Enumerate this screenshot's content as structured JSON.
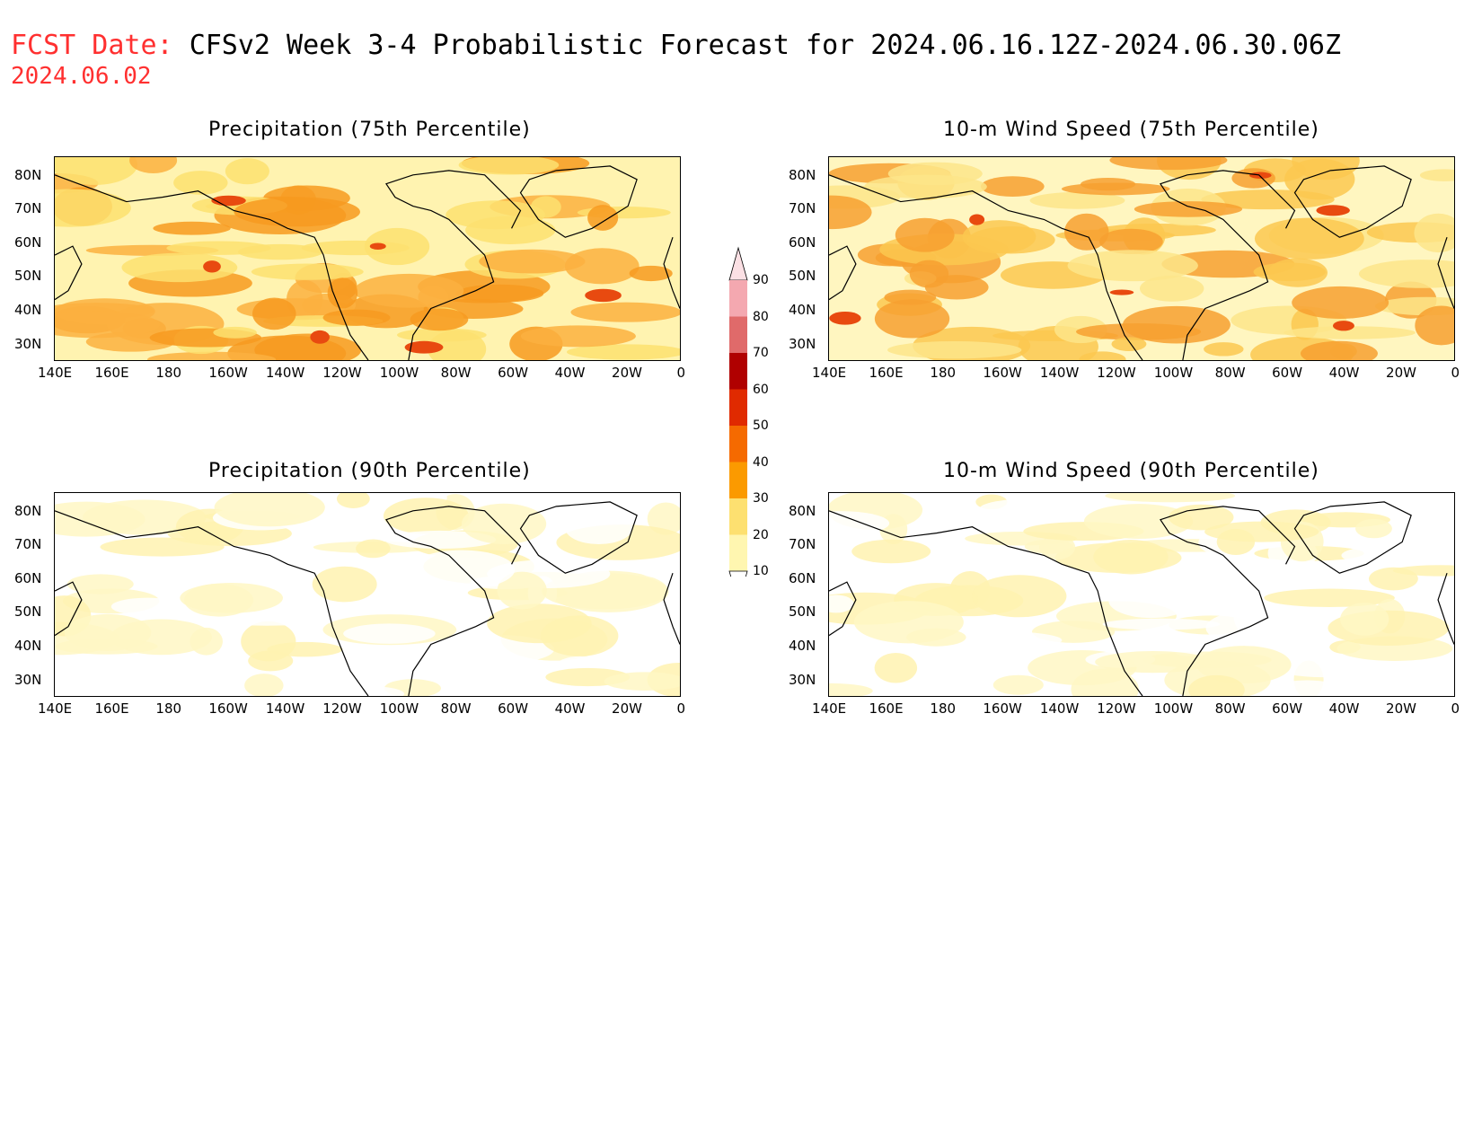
{
  "header": {
    "fcst_label": "FCST Date:",
    "title": "CFSv2 Week 3-4 Probabilistic Forecast for 2024.06.16.12Z-2024.06.30.06Z",
    "fcst_date": "2024.06.02"
  },
  "axes": {
    "lat_labels": [
      "80N",
      "70N",
      "60N",
      "50N",
      "40N",
      "30N"
    ],
    "lon_labels": [
      "140E",
      "160E",
      "180",
      "160W",
      "140W",
      "120W",
      "100W",
      "80W",
      "60W",
      "40W",
      "20W",
      "0"
    ]
  },
  "panels": [
    {
      "title": "Precipitation (75th Percentile)",
      "intensity": "high"
    },
    {
      "title": "10-m Wind Speed (75th Percentile)",
      "intensity": "mid"
    },
    {
      "title": "Precipitation (90th Percentile)",
      "intensity": "low"
    },
    {
      "title": "10-m Wind Speed (90th Percentile)",
      "intensity": "low"
    }
  ],
  "colorbar": {
    "levels": [
      "90",
      "80",
      "70",
      "60",
      "50",
      "40",
      "30",
      "20",
      "10"
    ],
    "colors": [
      "#f4a8b0",
      "#e06a6a",
      "#b00000",
      "#e02a00",
      "#f56a00",
      "#fb9a00",
      "#fde070",
      "#fff6b0"
    ]
  }
}
